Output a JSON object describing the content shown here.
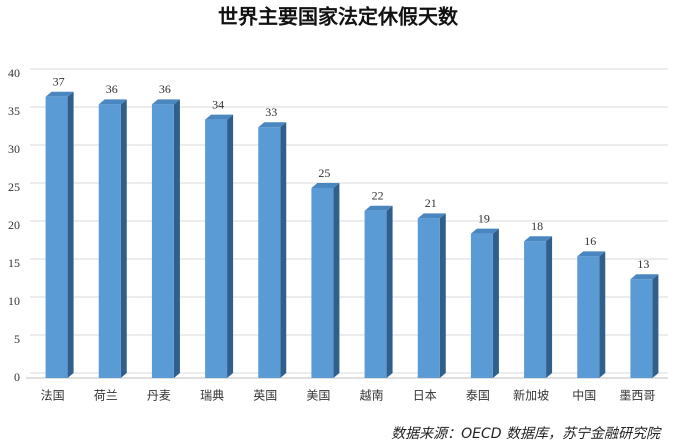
{
  "chart_data": {
    "type": "bar",
    "title": "世界主要国家法定休假天数",
    "categories": [
      "法国",
      "荷兰",
      "丹麦",
      "瑞典",
      "英国",
      "美国",
      "越南",
      "日本",
      "泰国",
      "新加坡",
      "中国",
      "墨西哥"
    ],
    "values": [
      37,
      36,
      36,
      34,
      33,
      25,
      22,
      21,
      19,
      18,
      16,
      13
    ],
    "color": "#5b9bd5",
    "ylim": [
      0,
      40
    ],
    "yticks": [
      0,
      5,
      10,
      15,
      20,
      25,
      30,
      35,
      40
    ],
    "grid": true,
    "source": "数据来源：OECD 数据库，苏宁金融研究院"
  }
}
